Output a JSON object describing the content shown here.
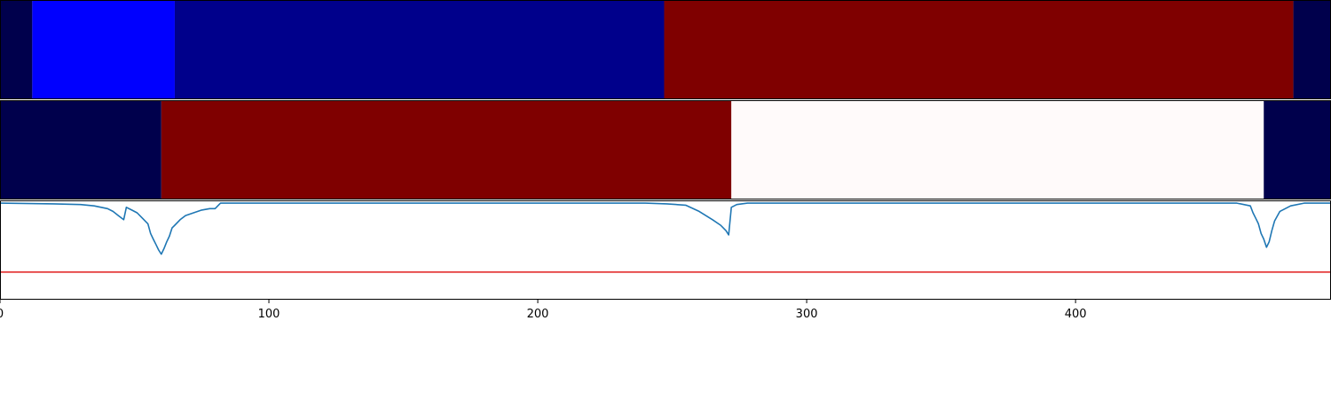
{
  "chart_data": [
    {
      "type": "heatmap",
      "name": "top-strip",
      "xlim": [
        0,
        495
      ],
      "segments": [
        {
          "x0": 0,
          "x1": 12,
          "color": "#00004c"
        },
        {
          "x0": 12,
          "x1": 65,
          "color": "#0000ff"
        },
        {
          "x0": 65,
          "x1": 247,
          "color": "#00008b"
        },
        {
          "x0": 247,
          "x1": 481,
          "color": "#7f0000"
        },
        {
          "x0": 481,
          "x1": 495,
          "color": "#00004c"
        }
      ]
    },
    {
      "type": "heatmap",
      "name": "middle-strip",
      "xlim": [
        0,
        495
      ],
      "segments": [
        {
          "x0": 0,
          "x1": 60,
          "color": "#00004c"
        },
        {
          "x0": 60,
          "x1": 272,
          "color": "#7f0000"
        },
        {
          "x0": 272,
          "x1": 470,
          "color": "#fffafa"
        },
        {
          "x0": 470,
          "x1": 495,
          "color": "#00004c"
        }
      ]
    },
    {
      "type": "line",
      "xlim": [
        0,
        495
      ],
      "ylim": [
        -0.7,
        0.02
      ],
      "xticks": [
        0,
        100,
        200,
        300,
        400
      ],
      "grid": false,
      "threshold": {
        "value": -0.5,
        "color": "#e01c1c"
      },
      "series": [
        {
          "color": "#1f77b4",
          "x": [
            0,
            20,
            30,
            35,
            40,
            42,
            44,
            46,
            47,
            49,
            51,
            53,
            55,
            56,
            57,
            58,
            59,
            60,
            61,
            62,
            63,
            64,
            65,
            67,
            69,
            72,
            75,
            78,
            80,
            82,
            100,
            176,
            240,
            248,
            255,
            260,
            265,
            268,
            270,
            271,
            272,
            274,
            278,
            290,
            400,
            430,
            460,
            465,
            466,
            467,
            468,
            469,
            470,
            471,
            472,
            473,
            474,
            476,
            480,
            485,
            495
          ],
          "y": [
            0.0,
            -0.005,
            -0.01,
            -0.02,
            -0.04,
            -0.06,
            -0.09,
            -0.12,
            -0.03,
            -0.05,
            -0.07,
            -0.11,
            -0.15,
            -0.22,
            -0.26,
            -0.3,
            -0.34,
            -0.37,
            -0.33,
            -0.28,
            -0.24,
            -0.18,
            -0.16,
            -0.12,
            -0.09,
            -0.07,
            -0.05,
            -0.04,
            -0.04,
            0.0,
            0.0,
            0.0,
            0.0,
            -0.005,
            -0.015,
            -0.06,
            -0.12,
            -0.16,
            -0.2,
            -0.23,
            -0.03,
            -0.01,
            0.0,
            0.0,
            0.0,
            0.0,
            0.0,
            -0.02,
            -0.07,
            -0.11,
            -0.15,
            -0.22,
            -0.26,
            -0.32,
            -0.28,
            -0.2,
            -0.13,
            -0.06,
            -0.02,
            0.0,
            0.0
          ]
        }
      ]
    }
  ]
}
